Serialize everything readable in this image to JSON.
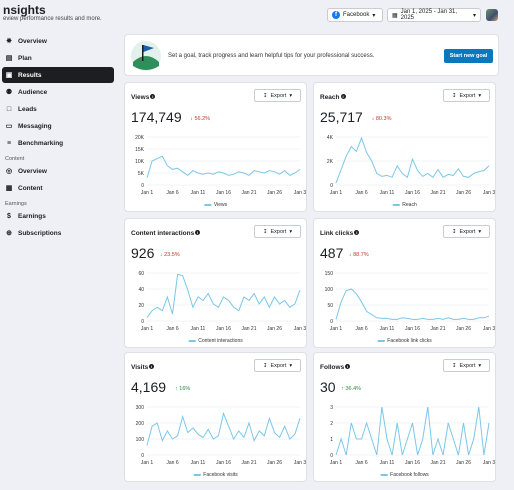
{
  "header": {
    "title": "nsights",
    "subtitle": "eview performance results and more.",
    "platform": "Facebook",
    "date_range": "Jan 1, 2025 - Jan 31, 2025"
  },
  "sidebar": {
    "items": [
      {
        "label": "Overview",
        "icon": "overview-icon",
        "glyph": "✵"
      },
      {
        "label": "Plan",
        "icon": "calendar-icon",
        "glyph": "▤"
      },
      {
        "label": "Results",
        "icon": "results-icon",
        "glyph": "▣"
      },
      {
        "label": "Audience",
        "icon": "audience-icon",
        "glyph": "⚉"
      },
      {
        "label": "Leads",
        "icon": "leads-icon",
        "glyph": "□"
      },
      {
        "label": "Messaging",
        "icon": "messaging-icon",
        "glyph": "▭"
      },
      {
        "label": "Benchmarking",
        "icon": "benchmarking-icon",
        "glyph": "≡"
      }
    ],
    "content_section": "Content",
    "content_items": [
      {
        "label": "Overview",
        "icon": "content-overview-icon",
        "glyph": "◎"
      },
      {
        "label": "Content",
        "icon": "content-icon",
        "glyph": "▦"
      }
    ],
    "earnings_section": "Earnings",
    "earnings_items": [
      {
        "label": "Earnings",
        "icon": "earnings-icon",
        "glyph": "$"
      },
      {
        "label": "Subscriptions",
        "icon": "subscriptions-icon",
        "glyph": "⊕"
      }
    ]
  },
  "banner": {
    "text": "Set a goal, track progress and learn helpful tips for your professional success.",
    "button": "Start new goal"
  },
  "export_label": "Export",
  "colors": {
    "line": "#7cc7e8",
    "accent": "#0a78be",
    "down": "#c0392b",
    "up": "#2b8a3e"
  },
  "cards": [
    {
      "title": "Views",
      "value": "174,749",
      "delta": "56.2%",
      "dir": "down"
    },
    {
      "title": "Reach",
      "value": "25,717",
      "delta": "80.3%",
      "dir": "down"
    },
    {
      "title": "Content interactions",
      "value": "926",
      "delta": "23.5%",
      "dir": "down"
    },
    {
      "title": "Link clicks",
      "value": "487",
      "delta": "88.7%",
      "dir": "down"
    },
    {
      "title": "Visits",
      "value": "4,169",
      "delta": "16%",
      "dir": "up"
    },
    {
      "title": "Follows",
      "value": "30",
      "delta": "36.4%",
      "dir": "up"
    }
  ],
  "chart_data": [
    {
      "type": "line",
      "series": [
        {
          "name": "Views",
          "values": [
            3000,
            10000,
            11000,
            12000,
            8000,
            6500,
            7000,
            5500,
            4000,
            6000,
            5000,
            4500,
            5000,
            4500,
            5500,
            5000,
            4000,
            4500,
            5500,
            5000,
            4000,
            6000,
            5500,
            5000,
            6000,
            5500,
            4500,
            6000,
            4000,
            5000,
            6500
          ]
        }
      ],
      "x_ticks": [
        "Jan 1",
        "Jan 6",
        "Jan 11",
        "Jan 16",
        "Jan 21",
        "Jan 26",
        "Jan 3"
      ],
      "y_ticks": [
        "0",
        "5K",
        "10K",
        "15K",
        "20K"
      ],
      "ylim": [
        0,
        20000
      ]
    },
    {
      "type": "line",
      "series": [
        {
          "name": "Reach",
          "values": [
            200,
            1600,
            3000,
            4000,
            3500,
            4900,
            3400,
            2500,
            1200,
            900,
            1000,
            800,
            2000,
            1200,
            800,
            2700,
            1500,
            900,
            1200,
            800,
            1600,
            800,
            1100,
            1000,
            1700,
            900,
            800,
            1200,
            1400,
            1500,
            2000
          ]
        }
      ],
      "x_ticks": [
        "Jan 1",
        "Jan 6",
        "Jan 11",
        "Jan 16",
        "Jan 21",
        "Jan 26",
        "Jan 3"
      ],
      "y_ticks": [
        "0",
        "2K",
        "4K"
      ],
      "ylim": [
        0,
        5000
      ]
    },
    {
      "type": "line",
      "series": [
        {
          "name": "Content interactions",
          "values": [
            5,
            15,
            20,
            15,
            35,
            10,
            68,
            66,
            45,
            20,
            35,
            30,
            40,
            25,
            20,
            35,
            30,
            20,
            15,
            35,
            30,
            40,
            25,
            35,
            20,
            35,
            25,
            30,
            20,
            25,
            45
          ]
        }
      ],
      "x_ticks": [
        "Jan 1",
        "Jan 6",
        "Jan 11",
        "Jan 16",
        "Jan 21",
        "Jan 26",
        "Jan 3"
      ],
      "y_ticks": [
        "0",
        "20",
        "40",
        "60"
      ],
      "ylim": [
        0,
        70
      ]
    },
    {
      "type": "line",
      "series": [
        {
          "name": "Facebook link clicks",
          "values": [
            5,
            60,
            95,
            100,
            85,
            60,
            30,
            20,
            10,
            8,
            8,
            5,
            5,
            10,
            8,
            5,
            5,
            8,
            5,
            5,
            8,
            5,
            10,
            5,
            5,
            8,
            5,
            5,
            10,
            10,
            15
          ]
        }
      ],
      "x_ticks": [
        "Jan 1",
        "Jan 6",
        "Jan 11",
        "Jan 16",
        "Jan 21",
        "Jan 26",
        "Jan 3"
      ],
      "y_ticks": [
        "0",
        "50",
        "100",
        "150"
      ],
      "ylim": [
        0,
        150
      ]
    },
    {
      "type": "line",
      "series": [
        {
          "name": "Facebook visits",
          "values": [
            60,
            180,
            200,
            90,
            150,
            100,
            120,
            240,
            140,
            170,
            130,
            110,
            160,
            100,
            120,
            260,
            180,
            100,
            150,
            110,
            200,
            90,
            150,
            120,
            230,
            140,
            110,
            180,
            100,
            130,
            230
          ]
        }
      ],
      "x_ticks": [
        "Jan 1",
        "Jan 6",
        "Jan 11",
        "Jan 16",
        "Jan 21",
        "Jan 26",
        "Jan 3"
      ],
      "y_ticks": [
        "0",
        "100",
        "200",
        "300"
      ],
      "ylim": [
        0,
        300
      ]
    },
    {
      "type": "line",
      "series": [
        {
          "name": "Facebook follows",
          "values": [
            0,
            1,
            0,
            2,
            1,
            1,
            2,
            1,
            0,
            3,
            1,
            0,
            2,
            0,
            1,
            2,
            0,
            1,
            3,
            0,
            1,
            0,
            2,
            1,
            0,
            2,
            0,
            1,
            3,
            0,
            2
          ]
        }
      ],
      "x_ticks": [
        "Jan 1",
        "Jan 6",
        "Jan 11",
        "Jan 16",
        "Jan 21",
        "Jan 26",
        "Jan 3"
      ],
      "y_ticks": [
        "0",
        "1",
        "2",
        "3"
      ],
      "ylim": [
        0,
        3
      ]
    }
  ]
}
